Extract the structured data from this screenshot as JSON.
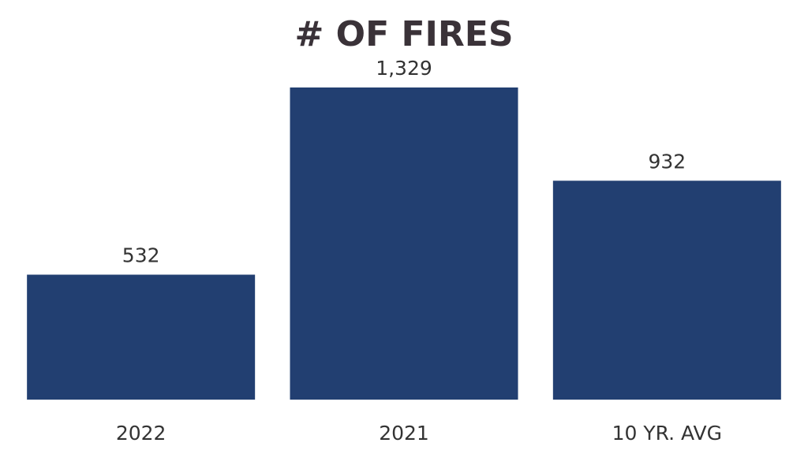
{
  "chart_data": {
    "type": "bar",
    "title": "# OF FIRES",
    "categories": [
      "2022",
      "2021",
      "10 YR. AVG"
    ],
    "values": [
      532,
      1329,
      932
    ],
    "value_labels": [
      "532",
      "1,329",
      "932"
    ],
    "color": "#223f71"
  }
}
